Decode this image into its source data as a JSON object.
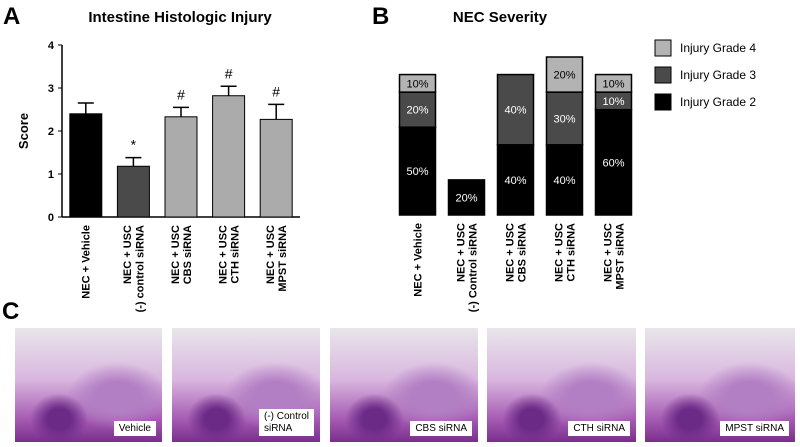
{
  "chart_data": [
    {
      "type": "bar",
      "panel_label": "A",
      "title": "Intestine Histologic Injury",
      "y_label": "Score",
      "categories": [
        "NEC + Vehicle",
        "NEC + USC\n(-) control siRNA",
        "NEC + USC\nCBS siRNA",
        "NEC + USC\nCTH siRNA",
        "NEC + USC\nMPST siRNA"
      ],
      "values": [
        2.4,
        1.18,
        2.33,
        2.82,
        2.27
      ],
      "errors": [
        0.25,
        0.2,
        0.22,
        0.22,
        0.35
      ],
      "colors": [
        "#000000",
        "#4a4a4a",
        "#ababab",
        "#ababab",
        "#ababab"
      ],
      "annotations": [
        null,
        "*",
        "#",
        "#",
        "#"
      ],
      "ylim": [
        0,
        4
      ],
      "yticks": [
        0,
        1,
        2,
        3,
        4
      ]
    },
    {
      "type": "stacked-bar",
      "panel_label": "B",
      "title": "NEC Severity",
      "categories": [
        "NEC + Vehicle",
        "NEC + USC\n(-) Control siRNA",
        "NEC + USC\nCBS siRNA",
        "NEC + USC\nCTH siRNA",
        "NEC + USC\nMPST siRNA"
      ],
      "series": [
        {
          "name": "Injury Grade 2",
          "color": "#000000",
          "values": [
            50,
            20,
            40,
            40,
            60
          ],
          "value_labels": [
            "50%",
            "20%",
            "40%",
            "40%",
            "60%"
          ]
        },
        {
          "name": "Injury Grade 3",
          "color": "#4a4a4a",
          "values": [
            20,
            null,
            40,
            30,
            10
          ],
          "value_labels": [
            "20%",
            null,
            "40%",
            "30%",
            "10%"
          ]
        },
        {
          "name": "Injury Grade 4",
          "color": "#b3b3b3",
          "values": [
            10,
            null,
            null,
            20,
            10
          ],
          "value_labels": [
            "10%",
            null,
            null,
            "20%",
            "10%"
          ]
        }
      ]
    }
  ],
  "panel_c": {
    "panel_label": "C",
    "images": [
      {
        "caption": "Vehicle"
      },
      {
        "caption": "(-) Control\nsiRNA"
      },
      {
        "caption": "CBS siRNA"
      },
      {
        "caption": "CTH siRNA"
      },
      {
        "caption": "MPST siRNA"
      }
    ]
  }
}
